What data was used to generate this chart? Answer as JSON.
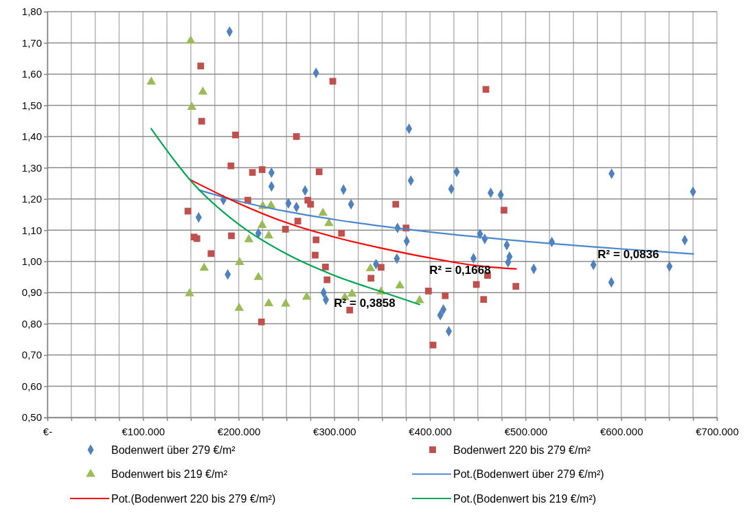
{
  "chart_data": {
    "type": "scatter",
    "xlim": [
      0,
      700000
    ],
    "ylim": [
      0.5,
      1.8
    ],
    "xticks": [
      {
        "value": 0,
        "label": "€-"
      },
      {
        "value": 25000,
        "label": null
      },
      {
        "value": 50000,
        "label": null
      },
      {
        "value": 75000,
        "label": null
      },
      {
        "value": 100000,
        "label": "€100.000"
      },
      {
        "value": 125000,
        "label": null
      },
      {
        "value": 150000,
        "label": null
      },
      {
        "value": 175000,
        "label": null
      },
      {
        "value": 200000,
        "label": "€200.000"
      },
      {
        "value": 225000,
        "label": null
      },
      {
        "value": 250000,
        "label": null
      },
      {
        "value": 275000,
        "label": null
      },
      {
        "value": 300000,
        "label": "€300.000"
      },
      {
        "value": 325000,
        "label": null
      },
      {
        "value": 350000,
        "label": null
      },
      {
        "value": 375000,
        "label": null
      },
      {
        "value": 400000,
        "label": "€400.000"
      },
      {
        "value": 425000,
        "label": null
      },
      {
        "value": 450000,
        "label": null
      },
      {
        "value": 475000,
        "label": null
      },
      {
        "value": 500000,
        "label": "€500.000"
      },
      {
        "value": 525000,
        "label": null
      },
      {
        "value": 550000,
        "label": null
      },
      {
        "value": 575000,
        "label": null
      },
      {
        "value": 600000,
        "label": "€600.000"
      },
      {
        "value": 625000,
        "label": null
      },
      {
        "value": 650000,
        "label": null
      },
      {
        "value": 675000,
        "label": null
      },
      {
        "value": 700000,
        "label": "€700.000"
      }
    ],
    "yticks": [
      {
        "value": 0.5,
        "label": "0,50"
      },
      {
        "value": 0.6,
        "label": "0,60"
      },
      {
        "value": 0.7,
        "label": "0,70"
      },
      {
        "value": 0.8,
        "label": "0,80"
      },
      {
        "value": 0.9,
        "label": "0,90"
      },
      {
        "value": 1.0,
        "label": "1,00"
      },
      {
        "value": 1.1,
        "label": "1,10"
      },
      {
        "value": 1.2,
        "label": "1,20"
      },
      {
        "value": 1.3,
        "label": "1,30"
      },
      {
        "value": 1.4,
        "label": "1,40"
      },
      {
        "value": 1.5,
        "label": "1,50"
      },
      {
        "value": 1.6,
        "label": "1,60"
      },
      {
        "value": 1.7,
        "label": "1,70"
      },
      {
        "value": 1.8,
        "label": "1,80"
      }
    ],
    "grid": true,
    "legend": "bottom",
    "series": [
      {
        "name": "Bodenwert über 279 €/m²",
        "marker": "diamond",
        "color": "#4f81bd",
        "x": [
          190500,
          234300,
          234300,
          184000,
          252000,
          158200,
          220600,
          188600,
          260400,
          288800,
          291200,
          343600,
          366100,
          375700,
          365400,
          410800,
          414000,
          419700,
          445500,
          452300,
          457300,
          480300,
          483100,
          481700,
          280900,
          378100,
          380000,
          427900,
          422300,
          463500,
          474000,
          269400,
          309600,
          317500,
          527400,
          508500,
          570900,
          589600,
          650400,
          666400,
          589900,
          675000
        ],
        "values": [
          1.736,
          1.284,
          1.24,
          1.197,
          1.186,
          1.141,
          1.09,
          0.958,
          1.174,
          0.9,
          0.877,
          0.991,
          1.107,
          1.065,
          1.009,
          0.828,
          0.846,
          0.776,
          1.01,
          1.088,
          1.072,
          1.052,
          1.015,
          0.997,
          1.604,
          1.425,
          1.259,
          1.287,
          1.232,
          1.22,
          1.213,
          1.227,
          1.23,
          1.183,
          1.062,
          0.976,
          0.989,
          0.933,
          0.984,
          1.068,
          1.281,
          1.223
        ]
      },
      {
        "name": "Bodenwert 220 bis 279 €/m²",
        "marker": "square",
        "color": "#c0504d",
        "x": [
          160300,
          161300,
          196700,
          191900,
          214400,
          224500,
          209600,
          146900,
          153400,
          156300,
          192400,
          171100,
          248900,
          223800,
          275200,
          261800,
          307500,
          280900,
          280000,
          290700,
          292400,
          316100,
          348900,
          338300,
          364200,
          375000,
          398400,
          415900,
          403200,
          460200,
          448500,
          456100,
          489800,
          477400,
          298400,
          458500,
          260400,
          284100,
          272300
        ],
        "values": [
          1.626,
          1.449,
          1.405,
          1.306,
          1.285,
          1.294,
          1.196,
          1.161,
          1.078,
          1.073,
          1.082,
          1.025,
          1.103,
          0.806,
          1.183,
          1.129,
          1.09,
          1.069,
          1.02,
          0.982,
          0.941,
          0.844,
          0.981,
          0.946,
          1.183,
          1.107,
          0.905,
          0.89,
          0.732,
          0.955,
          0.926,
          0.878,
          0.92,
          1.164,
          1.577,
          1.551,
          1.4,
          1.287,
          1.196
        ]
      },
      {
        "name": "Bodenwert bis 219 €/m²",
        "marker": "triangle",
        "color": "#9bbb59",
        "x": [
          149800,
          108600,
          162500,
          151000,
          225200,
          233800,
          224500,
          231400,
          210600,
          201000,
          163900,
          220600,
          148600,
          200500,
          231400,
          249100,
          288100,
          294300,
          271100,
          311000,
          318500,
          337800,
          348900,
          368500,
          389100
        ],
        "values": [
          1.707,
          1.575,
          1.543,
          1.494,
          1.177,
          1.179,
          1.116,
          1.082,
          1.07,
          0.997,
          0.979,
          0.949,
          0.897,
          0.85,
          0.865,
          0.864,
          1.155,
          1.122,
          0.886,
          0.884,
          0.896,
          0.977,
          0.903,
          0.922,
          0.875
        ]
      },
      {
        "name": "Pot.(Bodenwert über 279 €/m²)",
        "type": "line",
        "marker": "none",
        "color": "#4a86d0",
        "x": [
          158200,
          200000,
          250000,
          300000,
          400000,
          500000,
          600000,
          675500
        ],
        "values": [
          1.229,
          1.193,
          1.16,
          1.134,
          1.094,
          1.064,
          1.04,
          1.024
        ]
      },
      {
        "name": "Pot.(Bodenwert 220 bis 279 €/m²)",
        "type": "line",
        "marker": "none",
        "color": "#ff0000",
        "x": [
          149100,
          200000,
          250000,
          300000,
          350000,
          400000,
          450000,
          490100
        ],
        "values": [
          1.262,
          1.186,
          1.124,
          1.078,
          1.042,
          1.011,
          0.986,
          0.976
        ]
      },
      {
        "name": "Pot.(Bodenwert bis 219 €/m²)",
        "type": "line",
        "marker": "none",
        "color": "#00a650",
        "x": [
          108600,
          150000,
          200000,
          250000,
          300000,
          350000,
          389100
        ],
        "values": [
          1.425,
          1.258,
          1.119,
          1.024,
          0.955,
          0.902,
          0.862
        ]
      }
    ],
    "annotations": [
      "R² = 0,0836",
      "R² = 0,1668",
      "R² = 0,3858"
    ]
  }
}
